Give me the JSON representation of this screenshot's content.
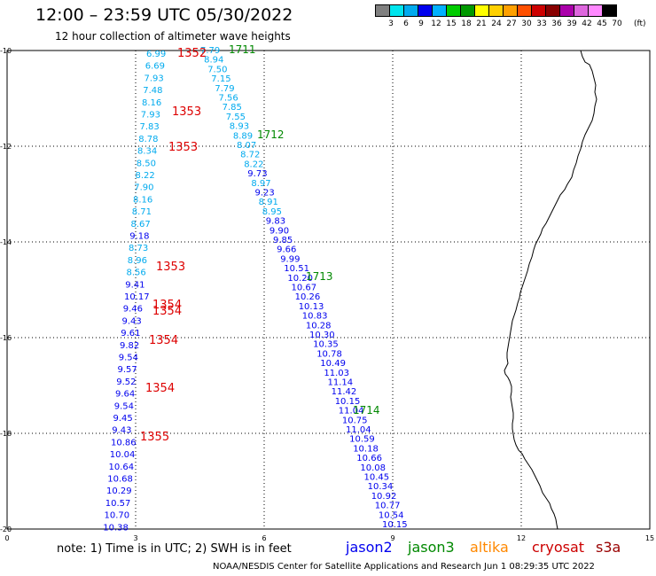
{
  "header": {
    "title": "12:00 – 23:59 UTC 05/30/2022",
    "subtitle": "12 hour collection of altimeter wave heights"
  },
  "legend": {
    "colors": [
      "#808080",
      "#00e5ee",
      "#00aaee",
      "#0000ee",
      "#00b0ff",
      "#00cc00",
      "#009900",
      "#ffff00",
      "#ffd000",
      "#ffa000",
      "#ff5000",
      "#cc0000",
      "#880000",
      "#aa00aa",
      "#dd66dd",
      "#ff88ff",
      "#000000"
    ],
    "labels": [
      "3",
      "6",
      "9",
      "12",
      "15",
      "18",
      "21",
      "24",
      "27",
      "30",
      "33",
      "36",
      "39",
      "42",
      "45",
      "70"
    ],
    "unit": "(ft)"
  },
  "axes": {
    "y_labels": [
      "10",
      "12",
      "14",
      "16",
      "18",
      "20"
    ],
    "x_labels": [
      "0",
      "3",
      "6",
      "9",
      "12",
      "15"
    ]
  },
  "tracks": {
    "jason2": [
      "7.79",
      "8.94",
      "7.50",
      "7.15",
      "7.79",
      "7.56",
      "7.85",
      "7.55",
      "8.93",
      "8.89",
      "8.07",
      "8.72",
      "8.22",
      "9.73",
      "8.97",
      "9.23",
      "8.91",
      "8.95",
      "9.83",
      "9.90",
      "9.85",
      "9.66",
      "9.99",
      "10.51",
      "10.20",
      "10.67",
      "10.26",
      "10.13",
      "10.83",
      "10.28",
      "10.30",
      "10.35",
      "10.78",
      "10.49",
      "11.03",
      "11.14",
      "11.42",
      "10.15",
      "11.04",
      "10.75",
      "11.04",
      "10.59",
      "10.18",
      "10.66",
      "10.08",
      "10.45",
      "10.34",
      "10.92",
      "10.77",
      "10.54",
      "10.15"
    ],
    "cryosat": [
      "6.99",
      "6.69",
      "7.93",
      "7.48",
      "8.16",
      "7.93",
      "7.83",
      "8.78",
      "8.34",
      "8.50",
      "8.22",
      "7.90",
      "8.16",
      "8.71",
      "8.67",
      "9.18",
      "8.73",
      "8.96",
      "8.56",
      "9.41",
      "10.17",
      "9.46",
      "9.43",
      "9.61",
      "9.82",
      "9.54",
      "9.57",
      "9.52",
      "9.64",
      "9.54",
      "9.45",
      "9.43",
      "10.86",
      "10.04",
      "10.64",
      "10.68",
      "10.29",
      "10.57",
      "10.70",
      "10.38"
    ],
    "cryosat_times": [
      "1352",
      "1353",
      "1353",
      "1353",
      "1354",
      "1354",
      "1354",
      "1354",
      "1355"
    ],
    "jason3_times": [
      "1711",
      "1712",
      "1713",
      "1714"
    ]
  },
  "footer": {
    "note": "note:  1) Time is in UTC; 2) SWH is in feet",
    "sat_jason2": "jason2",
    "sat_jason3": "jason3",
    "sat_altika": "altika",
    "sat_cryosat": "cryosat",
    "sat_s3a": "s3a",
    "credit": "NOAA/NESDIS Center for Satellite Applications and Research    Jun  1 08:29:35 UTC 2022"
  }
}
